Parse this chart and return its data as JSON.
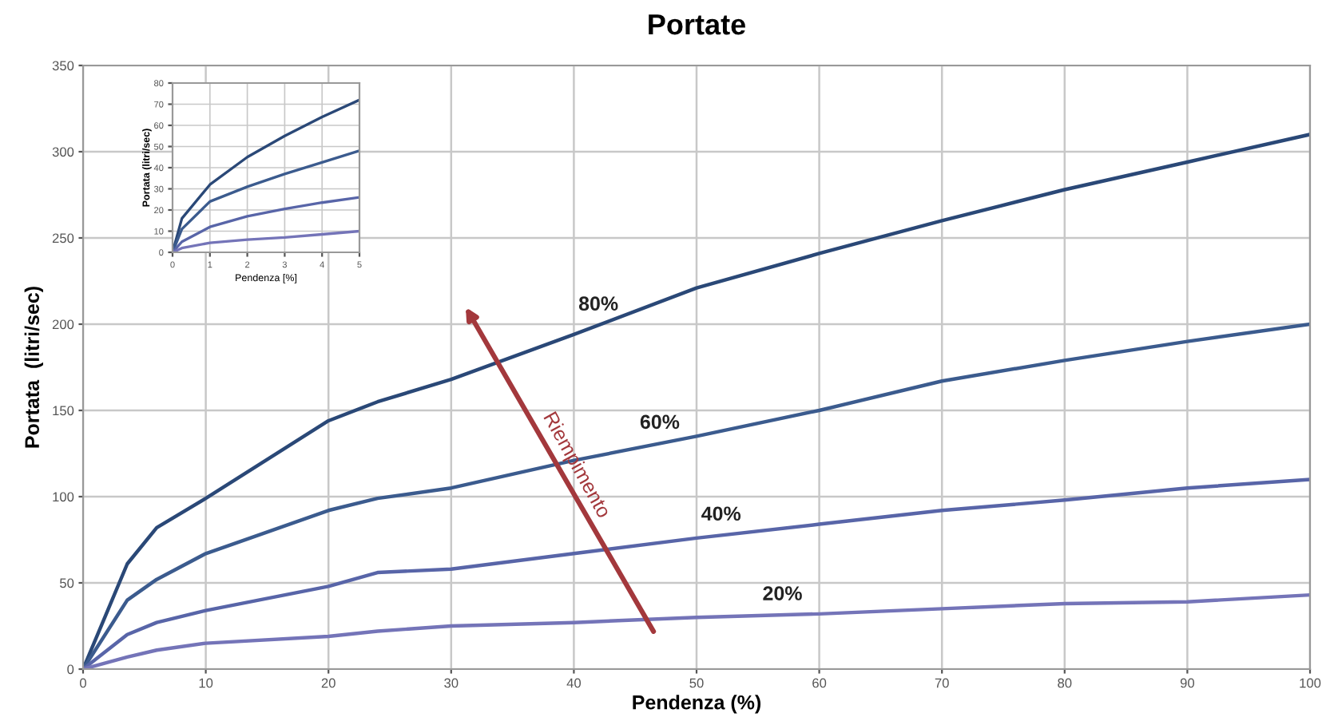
{
  "chart_data": [
    {
      "type": "line",
      "title": "Portate",
      "xlabel": "Pendenza (%)",
      "ylabel": "Portata  (litri/sec)",
      "xlim": [
        0,
        100
      ],
      "xticks": [
        0,
        10,
        20,
        30,
        40,
        50,
        60,
        70,
        80,
        90,
        100
      ],
      "ylim": [
        0,
        350
      ],
      "yticks": [
        0,
        50,
        100,
        150,
        200,
        250,
        300,
        350
      ],
      "grid": true,
      "x": [
        0,
        3.6,
        6,
        10,
        20,
        24,
        30,
        40,
        50,
        60,
        70,
        80,
        90,
        100
      ],
      "series": [
        {
          "name": "80%",
          "color": "#2a4877",
          "values": [
            0,
            61,
            82,
            99,
            144,
            155,
            168,
            194,
            221,
            241,
            260,
            278,
            294,
            310
          ]
        },
        {
          "name": "60%",
          "color": "#3b5b8e",
          "values": [
            0,
            40,
            52,
            67,
            92,
            99,
            105,
            121,
            135,
            150,
            167,
            179,
            190,
            200
          ]
        },
        {
          "name": "40%",
          "color": "#5865a8",
          "values": [
            0,
            20,
            27,
            34,
            48,
            56,
            58,
            67,
            76,
            84,
            92,
            98,
            105,
            110
          ]
        },
        {
          "name": "20%",
          "color": "#7474b8",
          "values": [
            0,
            7,
            11,
            15,
            19,
            22,
            25,
            27,
            30,
            32,
            35,
            38,
            39,
            43
          ]
        }
      ],
      "annotations": [
        "Riempimento"
      ]
    },
    {
      "type": "line",
      "xlabel": "Pendenza [%]",
      "ylabel": "Portata (litri/sec)",
      "xlim": [
        0,
        5
      ],
      "xticks": [
        0,
        1,
        2,
        3,
        4,
        5
      ],
      "ylim": [
        0,
        80
      ],
      "yticks": [
        0,
        10,
        20,
        30,
        40,
        50,
        60,
        70,
        80
      ],
      "grid": true,
      "x": [
        0,
        0.25,
        1,
        2,
        3,
        4,
        5
      ],
      "series": [
        {
          "color": "#2a4877",
          "values": [
            0,
            16,
            32,
            45,
            55,
            64,
            72
          ]
        },
        {
          "color": "#3b5b8e",
          "values": [
            0,
            11,
            24,
            31,
            37,
            42.5,
            48
          ]
        },
        {
          "color": "#5865a8",
          "values": [
            0,
            5,
            12,
            17,
            20.5,
            23.5,
            26
          ]
        },
        {
          "color": "#7474b8",
          "values": [
            0,
            2,
            4.5,
            6,
            7,
            8.5,
            10
          ]
        }
      ]
    }
  ]
}
